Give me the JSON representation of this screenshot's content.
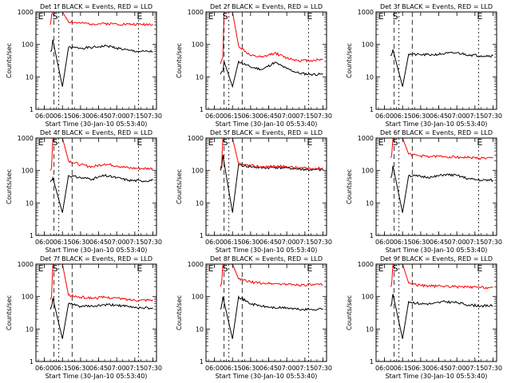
{
  "page": {
    "background": "#ffffff",
    "colors": {
      "events": "#000000",
      "lld": "#ff0000",
      "axes": "#000000"
    }
  },
  "chart_data": [
    {
      "type": "line",
      "title": "Det  1f BLACK = Events, RED = LLD",
      "xlabel": "Start Time (30-Jan-10 05:53:40)",
      "ylabel": "Counts/sec",
      "x_tick_labels": [
        "06:00",
        "06:15",
        "06:30",
        "06:45",
        "07:00",
        "07:15",
        "07:30"
      ],
      "y_tick_labels": [
        "1",
        "10",
        "100",
        "1000"
      ],
      "y_scale": "log",
      "ylim": [
        1,
        1000
      ],
      "markers": [
        "E",
        "S",
        "E"
      ],
      "series": [
        {
          "name": "Events",
          "color": "#000000",
          "t": [
            "06:05",
            "06:06",
            "06:07",
            "06:15",
            "06:20",
            "06:30",
            "06:40",
            "06:45",
            "06:52",
            "07:00",
            "07:10",
            "07:20",
            "07:30"
          ],
          "values": [
            60,
            65,
            140,
            5,
            80,
            78,
            80,
            85,
            90,
            78,
            65,
            60,
            60
          ]
        },
        {
          "name": "LLD",
          "color": "#ff0000",
          "t": [
            "06:05",
            "06:06",
            "06:07",
            "06:15",
            "06:20",
            "06:30",
            "06:40",
            "06:50",
            "07:00",
            "07:10",
            "07:20",
            "07:30"
          ],
          "values": [
            400,
            800,
            1000,
            1000,
            500,
            450,
            430,
            440,
            430,
            420,
            420,
            420
          ]
        }
      ]
    },
    {
      "type": "line",
      "title": "Det  2f BLACK = Events, RED = LLD",
      "xlabel": "Start Time (30-Jan-10 05:53:40)",
      "ylabel": "Counts/sec",
      "x_tick_labels": [
        "06:00",
        "06:15",
        "06:30",
        "06:45",
        "07:00",
        "07:15",
        "07:30"
      ],
      "y_tick_labels": [
        "1",
        "10",
        "100",
        "1000"
      ],
      "y_scale": "log",
      "ylim": [
        1,
        1000
      ],
      "markers": [
        "E",
        "S",
        "E"
      ],
      "series": [
        {
          "name": "Events",
          "color": "#000000",
          "t": [
            "06:05",
            "06:07",
            "06:08",
            "06:15",
            "06:20",
            "06:30",
            "06:40",
            "06:50",
            "07:00",
            "07:10",
            "07:20",
            "07:30"
          ],
          "values": [
            12,
            15,
            30,
            5,
            30,
            20,
            17,
            28,
            18,
            13,
            12,
            12
          ]
        },
        {
          "name": "LLD",
          "color": "#ff0000",
          "t": [
            "06:05",
            "06:07",
            "06:08",
            "06:15",
            "06:20",
            "06:30",
            "06:40",
            "06:50",
            "07:00",
            "07:10",
            "07:20",
            "07:30"
          ],
          "values": [
            25,
            40,
            1000,
            1000,
            90,
            45,
            40,
            55,
            38,
            32,
            32,
            35
          ]
        }
      ]
    },
    {
      "type": "line",
      "title": "Det  3f BLACK = Events, RED = LLD",
      "xlabel": "Start Time (30-Jan-10 05:53:40)",
      "ylabel": "Counts/sec",
      "x_tick_labels": [
        "06:00",
        "06:15",
        "06:30",
        "06:45",
        "07:00",
        "07:15",
        "07:30"
      ],
      "y_tick_labels": [
        "1",
        "10",
        "100",
        "1000"
      ],
      "y_scale": "log",
      "ylim": [
        1,
        1000
      ],
      "markers": [
        "E",
        "S",
        "E"
      ],
      "series": [
        {
          "name": "Events",
          "color": "#000000",
          "t": [
            "06:05",
            "06:06",
            "06:07",
            "06:15",
            "06:20",
            "06:30",
            "06:40",
            "06:50",
            "07:00",
            "07:10",
            "07:20",
            "07:30"
          ],
          "values": [
            45,
            50,
            70,
            5,
            50,
            48,
            48,
            52,
            55,
            48,
            45,
            45
          ]
        },
        {
          "name": "LLD",
          "color": "#ff0000",
          "t": [
            "06:05",
            "06:07",
            "06:15",
            "06:20",
            "06:40",
            "07:00",
            "07:20",
            "07:30"
          ],
          "values": [
            1000,
            1000,
            1000,
            1000,
            1000,
            1000,
            1000,
            1000
          ]
        }
      ]
    },
    {
      "type": "line",
      "title": "Det  4f BLACK = Events, RED = LLD",
      "xlabel": "Start Time (30-Jan-10 05:53:40)",
      "ylabel": "Counts/sec",
      "x_tick_labels": [
        "06:00",
        "06:15",
        "06:30",
        "06:45",
        "07:00",
        "07:15",
        "07:30"
      ],
      "y_tick_labels": [
        "1",
        "10",
        "100",
        "1000"
      ],
      "y_scale": "log",
      "ylim": [
        1,
        1000
      ],
      "markers": [
        "E",
        "S",
        "E"
      ],
      "series": [
        {
          "name": "Events",
          "color": "#000000",
          "t": [
            "06:05",
            "06:06",
            "06:07",
            "06:15",
            "06:20",
            "06:30",
            "06:40",
            "06:50",
            "07:00",
            "07:10",
            "07:20",
            "07:30"
          ],
          "values": [
            45,
            50,
            60,
            5,
            70,
            60,
            55,
            70,
            60,
            50,
            48,
            50
          ]
        },
        {
          "name": "LLD",
          "color": "#ff0000",
          "t": [
            "06:05",
            "06:06",
            "06:07",
            "06:15",
            "06:20",
            "06:30",
            "06:40",
            "06:50",
            "07:00",
            "07:10",
            "07:20",
            "07:30"
          ],
          "values": [
            100,
            120,
            1000,
            1000,
            200,
            150,
            130,
            160,
            140,
            120,
            115,
            115
          ]
        }
      ]
    },
    {
      "type": "line",
      "title": "Det  5f BLACK = Events, RED = LLD",
      "xlabel": "Start Time (30-Jan-10 05:53:40)",
      "ylabel": "Counts/sec",
      "x_tick_labels": [
        "06:00",
        "06:15",
        "06:30",
        "06:45",
        "07:00",
        "07:15",
        "07:30"
      ],
      "y_tick_labels": [
        "1",
        "10",
        "100",
        "1000"
      ],
      "y_scale": "log",
      "ylim": [
        1,
        1000
      ],
      "markers": [
        "E",
        "S",
        "E"
      ],
      "series": [
        {
          "name": "Events",
          "color": "#000000",
          "t": [
            "06:05",
            "06:06",
            "06:07",
            "06:15",
            "06:20",
            "06:30",
            "06:40",
            "06:50",
            "07:00",
            "07:10",
            "07:20",
            "07:30"
          ],
          "values": [
            100,
            120,
            300,
            5,
            150,
            130,
            120,
            125,
            120,
            110,
            105,
            105
          ]
        },
        {
          "name": "LLD",
          "color": "#ff0000",
          "t": [
            "06:05",
            "06:06",
            "06:07",
            "06:15",
            "06:20",
            "06:30",
            "06:40",
            "06:50",
            "07:00",
            "07:10",
            "07:20",
            "07:30"
          ],
          "values": [
            120,
            140,
            1000,
            1000,
            160,
            140,
            130,
            135,
            130,
            120,
            115,
            118
          ]
        }
      ]
    },
    {
      "type": "line",
      "title": "Det  6f BLACK = Events, RED = LLD",
      "xlabel": "Start Time (30-Jan-10 05:53:40)",
      "ylabel": "Counts/sec",
      "x_tick_labels": [
        "06:00",
        "06:15",
        "06:30",
        "06:45",
        "07:00",
        "07:15",
        "07:30"
      ],
      "y_tick_labels": [
        "1",
        "10",
        "100",
        "1000"
      ],
      "y_scale": "log",
      "ylim": [
        1,
        1000
      ],
      "markers": [
        "E",
        "S",
        "E"
      ],
      "series": [
        {
          "name": "Events",
          "color": "#000000",
          "t": [
            "06:05",
            "06:06",
            "06:07",
            "06:15",
            "06:20",
            "06:30",
            "06:40",
            "06:50",
            "07:00",
            "07:10",
            "07:20",
            "07:30"
          ],
          "values": [
            60,
            70,
            140,
            5,
            70,
            65,
            62,
            75,
            70,
            55,
            50,
            50
          ]
        },
        {
          "name": "LLD",
          "color": "#ff0000",
          "t": [
            "06:05",
            "06:06",
            "06:07",
            "06:15",
            "06:20",
            "06:30",
            "06:40",
            "06:50",
            "07:00",
            "07:10",
            "07:20",
            "07:30"
          ],
          "values": [
            250,
            300,
            1000,
            1000,
            320,
            280,
            270,
            270,
            260,
            250,
            240,
            240
          ]
        }
      ]
    },
    {
      "type": "line",
      "title": "Det  7f BLACK = Events, RED = LLD",
      "xlabel": "Start Time (30-Jan-10 05:53:40)",
      "ylabel": "Counts/sec",
      "x_tick_labels": [
        "06:00",
        "06:15",
        "06:30",
        "06:45",
        "07:00",
        "07:15",
        "07:30"
      ],
      "y_tick_labels": [
        "1",
        "10",
        "100",
        "1000"
      ],
      "y_scale": "log",
      "ylim": [
        1,
        1000
      ],
      "markers": [
        "E",
        "S",
        "E"
      ],
      "series": [
        {
          "name": "Events",
          "color": "#000000",
          "t": [
            "06:05",
            "06:06",
            "06:07",
            "06:15",
            "06:20",
            "06:30",
            "06:40",
            "06:50",
            "07:00",
            "07:10",
            "07:20",
            "07:30"
          ],
          "values": [
            40,
            50,
            90,
            5,
            60,
            50,
            50,
            55,
            55,
            48,
            45,
            45
          ]
        },
        {
          "name": "LLD",
          "color": "#ff0000",
          "t": [
            "06:05",
            "06:06",
            "06:07",
            "06:15",
            "06:20",
            "06:30",
            "06:40",
            "06:50",
            "07:00",
            "07:10",
            "07:20",
            "07:30"
          ],
          "values": [
            80,
            100,
            1000,
            1000,
            110,
            95,
            90,
            95,
            90,
            80,
            78,
            80
          ]
        }
      ]
    },
    {
      "type": "line",
      "title": "Det  8f BLACK = Events, RED = LLD",
      "xlabel": "Start Time (30-Jan-10 05:53:40)",
      "ylabel": "Counts/sec",
      "x_tick_labels": [
        "06:00",
        "06:15",
        "06:30",
        "06:45",
        "07:00",
        "07:15",
        "07:30"
      ],
      "y_tick_labels": [
        "1",
        "10",
        "100",
        "1000"
      ],
      "y_scale": "log",
      "ylim": [
        1,
        1000
      ],
      "markers": [
        "E",
        "S",
        "E"
      ],
      "series": [
        {
          "name": "Events",
          "color": "#000000",
          "t": [
            "06:05",
            "06:06",
            "06:07",
            "06:15",
            "06:20",
            "06:30",
            "06:40",
            "06:50",
            "07:00",
            "07:10",
            "07:20",
            "07:30"
          ],
          "values": [
            40,
            55,
            100,
            5,
            100,
            60,
            50,
            45,
            45,
            40,
            40,
            42
          ]
        },
        {
          "name": "LLD",
          "color": "#ff0000",
          "t": [
            "06:05",
            "06:06",
            "06:07",
            "06:15",
            "06:20",
            "06:30",
            "06:40",
            "06:50",
            "07:00",
            "07:10",
            "07:20",
            "07:30"
          ],
          "values": [
            200,
            250,
            1000,
            1000,
            350,
            280,
            260,
            250,
            240,
            230,
            230,
            230
          ]
        }
      ]
    },
    {
      "type": "line",
      "title": "Det  9f BLACK = Events, RED = LLD",
      "xlabel": "Start Time (30-Jan-10 05:53:40)",
      "ylabel": "Counts/sec",
      "x_tick_labels": [
        "06:00",
        "06:15",
        "06:30",
        "06:45",
        "07:00",
        "07:15",
        "07:30"
      ],
      "y_tick_labels": [
        "1",
        "10",
        "100",
        "1000"
      ],
      "y_scale": "log",
      "ylim": [
        1,
        1000
      ],
      "markers": [
        "E",
        "S",
        "E"
      ],
      "series": [
        {
          "name": "Events",
          "color": "#000000",
          "t": [
            "06:05",
            "06:06",
            "06:07",
            "06:15",
            "06:20",
            "06:30",
            "06:40",
            "06:50",
            "07:00",
            "07:10",
            "07:20",
            "07:30"
          ],
          "values": [
            50,
            60,
            120,
            5,
            70,
            60,
            60,
            70,
            65,
            55,
            52,
            52
          ]
        },
        {
          "name": "LLD",
          "color": "#ff0000",
          "t": [
            "06:05",
            "06:06",
            "06:07",
            "06:15",
            "06:20",
            "06:30",
            "06:40",
            "06:50",
            "07:00",
            "07:10",
            "07:20",
            "07:30"
          ],
          "values": [
            200,
            250,
            1000,
            1000,
            260,
            220,
            210,
            210,
            200,
            195,
            190,
            190
          ]
        }
      ]
    }
  ]
}
